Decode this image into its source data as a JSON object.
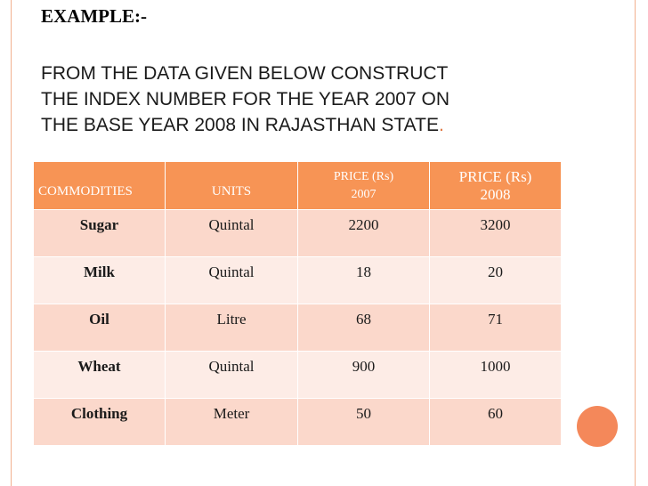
{
  "slide": {
    "title": "EXAMPLE:-",
    "intro_lines": [
      "FROM THE DATA GIVEN BELOW CONSTRUCT",
      "THE INDEX NUMBER FOR THE YEAR 2007 ON",
      "THE BASE YEAR 2008 IN RAJASTHAN STATE"
    ],
    "intro_end": ".",
    "accent_color": "#f79455"
  },
  "table": {
    "headers": {
      "commodities": "COMMODITIES",
      "units": "UNITS",
      "price_2007_line1": "PRICE (Rs)",
      "price_2007_line2": "2007",
      "price_2008_line1": "PRICE (Rs)",
      "price_2008_line2": "2008"
    },
    "rows": [
      {
        "commodity": "Sugar",
        "unit": "Quintal",
        "price_2007": "2200",
        "price_2008": "3200"
      },
      {
        "commodity": "Milk",
        "unit": "Quintal",
        "price_2007": "18",
        "price_2008": "20"
      },
      {
        "commodity": "Oil",
        "unit": "Litre",
        "price_2007": "68",
        "price_2008": "71"
      },
      {
        "commodity": "Wheat",
        "unit": "Quintal",
        "price_2007": "900",
        "price_2008": "1000"
      },
      {
        "commodity": "Clothing",
        "unit": "Meter",
        "price_2007": "50",
        "price_2008": "60"
      }
    ]
  }
}
